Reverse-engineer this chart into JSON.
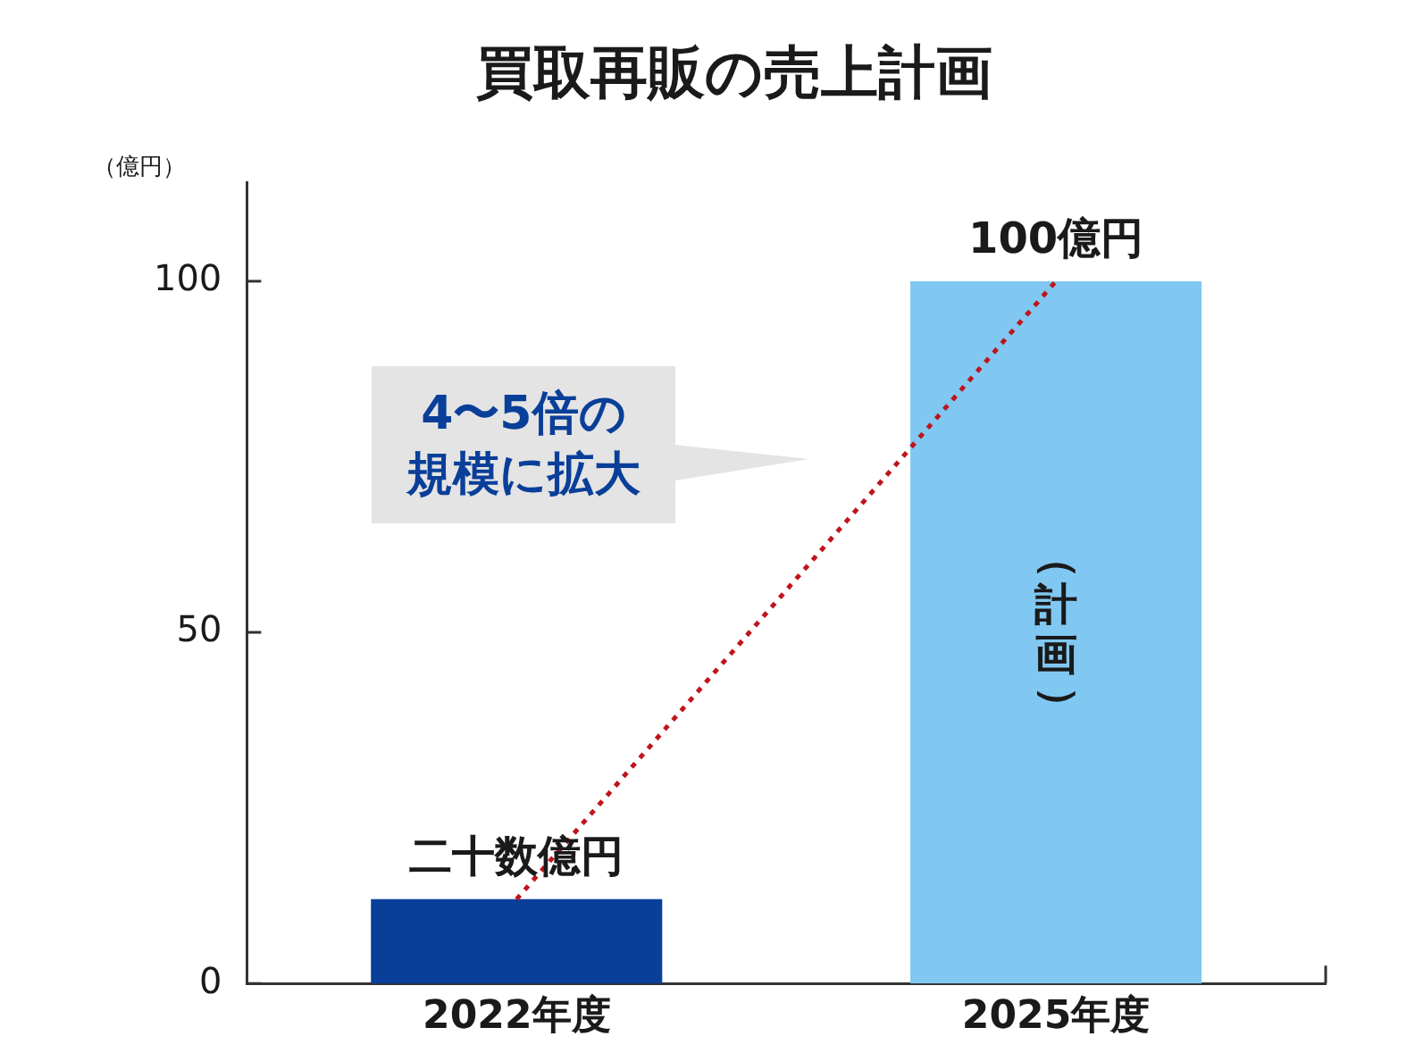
{
  "chart_data": {
    "type": "bar",
    "title": "買取再販の売上計画",
    "ylabel": "（億円）",
    "categories": [
      "2022年度",
      "2025年度"
    ],
    "values": [
      12,
      100
    ],
    "colors": [
      "#0a3f99",
      "#80c8f2"
    ],
    "value_labels": [
      "二十数億円",
      "100億円"
    ],
    "ylim": [
      0,
      114
    ],
    "yticks": [
      0,
      50,
      100
    ],
    "grid": false,
    "legend": false,
    "series": [
      {
        "type": "line",
        "values": [
          12,
          100
        ],
        "color": "#c0141c",
        "line_style": "dotted",
        "marker": "none"
      }
    ],
    "annotations": [
      "4〜5倍の規模に拡大",
      "（計画）"
    ]
  }
}
